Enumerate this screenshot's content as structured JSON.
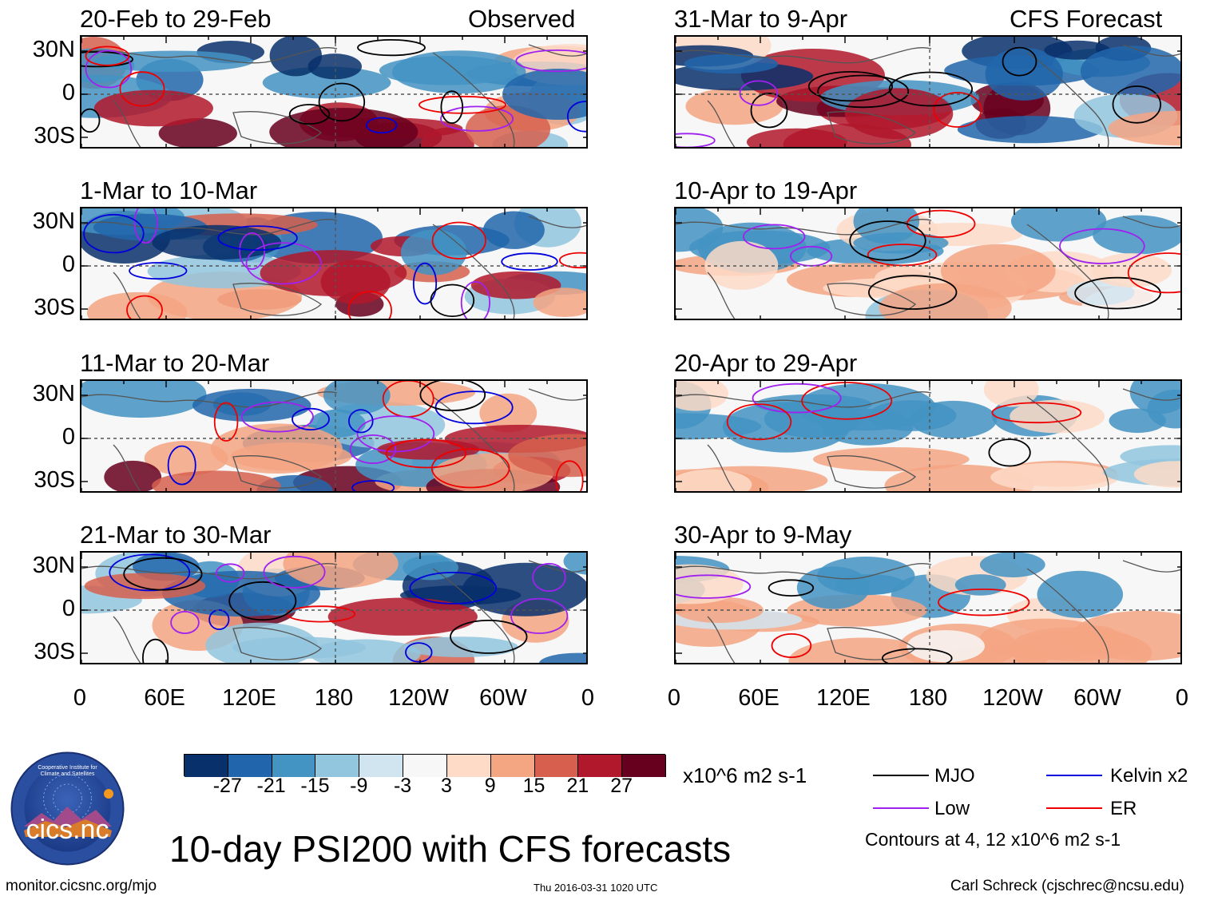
{
  "figure": {
    "title": "10-day PSI200 with CFS forecasts",
    "url": "monitor.cicsnc.org/mjo",
    "timestamp": "Thu 2016-03-31 1020 UTC",
    "author": "Carl Schreck (cjschrec@ncsu.edu)",
    "logo_text": "cics.nc",
    "logo_ring_text": "Cooperative Institute for Climate and Satellites"
  },
  "columns": {
    "observed_label": "Observed",
    "forecast_label": "CFS Forecast"
  },
  "chart_data": {
    "type": "heatmap",
    "variable": "PSI200",
    "lat_ticks": [
      "30N",
      "0",
      "30S"
    ],
    "lon_ticks": [
      "0",
      "60E",
      "120E",
      "180",
      "120W",
      "60W",
      "0"
    ],
    "lat_range": [
      -40,
      40
    ],
    "lon_range": [
      0,
      360
    ],
    "panels": [
      {
        "period": "20-Feb to 29-Feb",
        "kind": "Observed"
      },
      {
        "period": "1-Mar to 10-Mar",
        "kind": "Observed"
      },
      {
        "period": "11-Mar to 20-Mar",
        "kind": "Observed"
      },
      {
        "period": "21-Mar to 30-Mar",
        "kind": "Observed"
      },
      {
        "period": "31-Mar to 9-Apr",
        "kind": "CFS Forecast"
      },
      {
        "period": "10-Apr to 19-Apr",
        "kind": "CFS Forecast"
      },
      {
        "period": "20-Apr to 29-Apr",
        "kind": "CFS Forecast"
      },
      {
        "period": "30-Apr to 9-May",
        "kind": "CFS Forecast"
      }
    ],
    "colorbar": {
      "units": "x10^6 m2 s-1",
      "labels": [
        "-27",
        "-21",
        "-15",
        "-9",
        "-3",
        "3",
        "9",
        "15",
        "21",
        "27"
      ],
      "colors": [
        "#08306b",
        "#2166ac",
        "#4393c3",
        "#92c5de",
        "#d1e5f0",
        "#f7f7f7",
        "#fddbc7",
        "#f4a582",
        "#d6604d",
        "#b2182b",
        "#67001f"
      ]
    },
    "legend": [
      {
        "label": "MJO",
        "color": "#000000"
      },
      {
        "label": "Kelvin x2",
        "color": "#0000dd"
      },
      {
        "label": "Low",
        "color": "#a020f0"
      },
      {
        "label": "ER",
        "color": "#ee0000"
      }
    ],
    "contour_note": "Contours at 4, 12 x10^6 m2 s-1"
  }
}
